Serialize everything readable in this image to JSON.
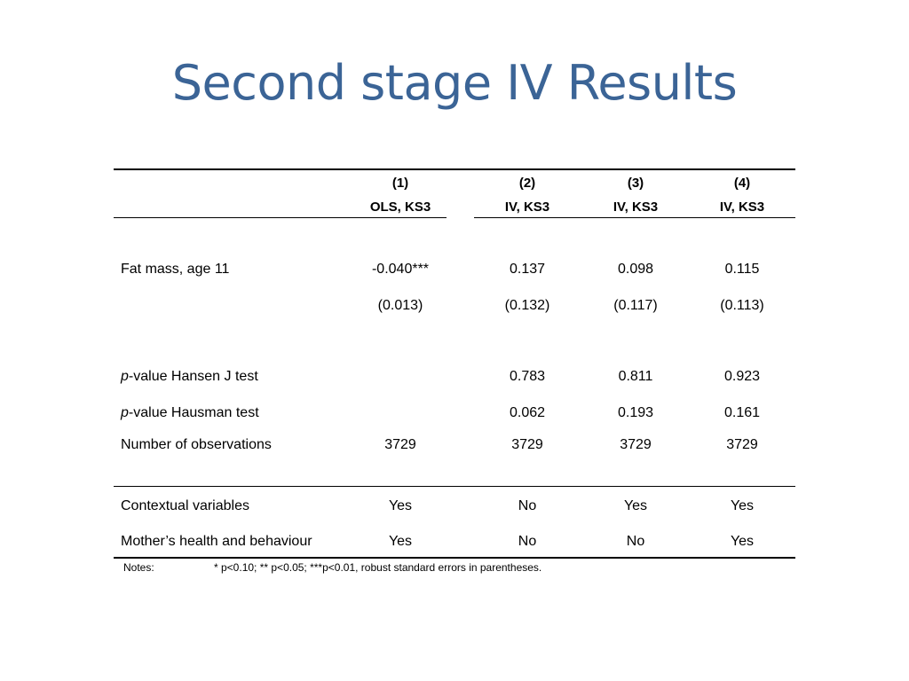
{
  "slide": {
    "title": "Second stage IV Results"
  },
  "table": {
    "columns": [
      {
        "num": "(1)",
        "label": "OLS, KS3"
      },
      {
        "num": "(2)",
        "label": "IV, KS3"
      },
      {
        "num": "(3)",
        "label": "IV, KS3"
      },
      {
        "num": "(4)",
        "label": "IV, KS3"
      }
    ],
    "rows": {
      "fat_mass": {
        "label": "Fat mass, age 11",
        "coef": [
          "-0.040***",
          "0.137",
          "0.098",
          "0.115"
        ],
        "se": [
          "(0.013)",
          "(0.132)",
          "(0.117)",
          "(0.113)"
        ]
      },
      "hansen": {
        "label_italic": "p",
        "label_rest": "-value Hansen J test",
        "values": [
          "",
          "0.783",
          "0.811",
          "0.923"
        ]
      },
      "hausman": {
        "label_italic": "p",
        "label_rest": "-value Hausman test",
        "values": [
          "",
          "0.062",
          "0.193",
          "0.161"
        ]
      },
      "nobs": {
        "label": "Number of observations",
        "values": [
          "3729",
          "3729",
          "3729",
          "3729"
        ]
      },
      "contextual": {
        "label": "Contextual variables",
        "values": [
          "Yes",
          "No",
          "Yes",
          "Yes"
        ]
      },
      "mother": {
        "label": "Mother’s health and behaviour",
        "values": [
          "Yes",
          "No",
          "No",
          "Yes"
        ]
      }
    },
    "notes_label": "Notes:",
    "notes_text": "* p<0.10; ** p<0.05; ***p<0.01, robust standard errors in parentheses."
  }
}
